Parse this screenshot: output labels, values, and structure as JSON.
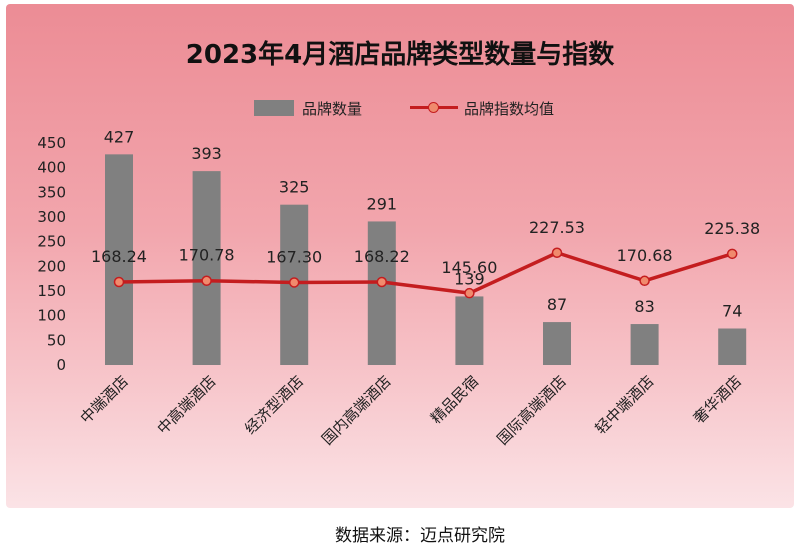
{
  "chart_data": {
    "type": "bar",
    "title": "2023年4月酒店品牌类型数量与指数",
    "categories": [
      "中端酒店",
      "中高端酒店",
      "经济型酒店",
      "国内高端酒店",
      "精品民宿",
      "国际高端酒店",
      "轻中端酒店",
      "奢华酒店"
    ],
    "series": [
      {
        "name": "品牌数量",
        "kind": "bar",
        "color": "#808080",
        "values": [
          427,
          393,
          325,
          291,
          139,
          87,
          83,
          74
        ]
      },
      {
        "name": "品牌指数均值",
        "kind": "line",
        "color": "#c41d1f",
        "marker_color": "#f08a6d",
        "values": [
          168.24,
          170.78,
          167.3,
          168.22,
          145.6,
          227.53,
          170.68,
          225.38
        ]
      }
    ],
    "bar_labels": [
      "427",
      "393",
      "325",
      "291",
      "139",
      "87",
      "83",
      "74"
    ],
    "line_labels": [
      "168.24",
      "170.78",
      "167.30",
      "168.22",
      "145.60",
      "227.53",
      "170.68",
      "225.38"
    ],
    "ylim": [
      0,
      450
    ],
    "yticks": [
      0,
      50,
      100,
      150,
      200,
      250,
      300,
      350,
      400,
      450
    ],
    "legend_position": "top-center",
    "grid": false,
    "xlabel": "",
    "ylabel": ""
  },
  "source_text": "数据来源：迈点研究院"
}
